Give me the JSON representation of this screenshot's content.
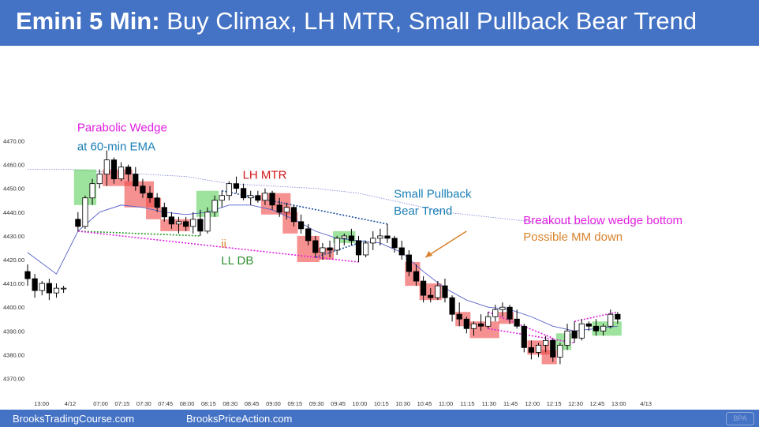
{
  "header": {
    "title_bold": "Emini 5 Min:",
    "title_rest": " Buy Climax, LH MTR, Small Pullback Bear Trend"
  },
  "footer": {
    "left_text": "BrooksTradingCourse.com",
    "right_text": "BrooksPriceAction.com",
    "logo_text": "BPA"
  },
  "colors": {
    "header_bg": "#4472c4",
    "bull_highlight": "#5ccf5c",
    "bear_highlight": "#f04848",
    "annotation_magenta": "#e020e0",
    "annotation_blue": "#1a7fb5",
    "annotation_red": "#d01818",
    "annotation_green": "#2f8f2f",
    "annotation_orange": "#d9822b",
    "ema_line": "#5560c8",
    "wedge_line_magenta": "#dd22dd",
    "db_line_green": "#2a9a2a"
  },
  "chart_data": {
    "type": "candlestick",
    "title": "Emini 5 Min: Buy Climax, LH MTR, Small Pullback Bear Trend",
    "ylim": [
      4365,
      4480
    ],
    "y_ticks": [
      "4470.00",
      "4460.00",
      "4450.00",
      "4440.00",
      "4430.00",
      "4420.00",
      "4410.00",
      "4400.00",
      "4390.00",
      "4380.00",
      "4370.00"
    ],
    "y_tick_values": [
      4470,
      4460,
      4450,
      4440,
      4430,
      4420,
      4410,
      4400,
      4390,
      4380,
      4370
    ],
    "x_ticks": [
      "13:00",
      "4/12",
      "07:00",
      "07:15",
      "07:30",
      "07:45",
      "08:00",
      "08:15",
      "08:30",
      "08:45",
      "09:00",
      "09:15",
      "09:30",
      "09:45",
      "10:00",
      "10:15",
      "10:30",
      "10:45",
      "11:00",
      "11:15",
      "11:30",
      "11:45",
      "12:00",
      "12:15",
      "12:30",
      "12:45",
      "13:00",
      "4/13"
    ],
    "x_tick_bars": [
      2,
      6,
      10,
      13,
      16,
      19,
      22,
      25,
      28,
      31,
      34,
      37,
      40,
      43,
      46,
      49,
      52,
      55,
      58,
      61,
      64,
      67,
      70,
      73,
      76,
      79,
      82,
      86
    ],
    "bars": [
      [
        4415,
        4418,
        4409,
        4412
      ],
      [
        4412,
        4414,
        4404,
        4407
      ],
      [
        4407,
        4411,
        4405,
        4410
      ],
      [
        4410,
        4412,
        4403,
        4406
      ],
      [
        4406,
        4410,
        4404,
        4408
      ],
      [
        4408,
        4409,
        4406,
        4408
      ],
      [
        4437,
        4440,
        4432,
        4434
      ],
      [
        4434,
        4447,
        4433,
        4446
      ],
      [
        4446,
        4454,
        4443,
        4452
      ],
      [
        4452,
        4458,
        4450,
        4456
      ],
      [
        4456,
        4466,
        4451,
        4462
      ],
      [
        4462,
        4463,
        4452,
        4454
      ],
      [
        4454,
        4461,
        4453,
        4459
      ],
      [
        4459,
        4460,
        4453,
        4456
      ],
      [
        4456,
        4459,
        4449,
        4451
      ],
      [
        4451,
        4454,
        4446,
        4448
      ],
      [
        4448,
        4451,
        4444,
        4446
      ],
      [
        4446,
        4448,
        4440,
        4442
      ],
      [
        4442,
        4444,
        4436,
        4438
      ],
      [
        4438,
        4440,
        4433,
        4435
      ],
      [
        4435,
        4438,
        4431,
        4436
      ],
      [
        4436,
        4438,
        4432,
        4434
      ],
      [
        4434,
        4440,
        4431,
        4437
      ],
      [
        4437,
        4441,
        4430,
        4432
      ],
      [
        4432,
        4442,
        4431,
        4440
      ],
      [
        4440,
        4447,
        4438,
        4445
      ],
      [
        4445,
        4449,
        4442,
        4447
      ],
      [
        4447,
        4453,
        4445,
        4452
      ],
      [
        4452,
        4455,
        4448,
        4450
      ],
      [
        4450,
        4452,
        4445,
        4446
      ],
      [
        4446,
        4449,
        4443,
        4447
      ],
      [
        4447,
        4449,
        4444,
        4445
      ],
      [
        4445,
        4450,
        4443,
        4448
      ],
      [
        4448,
        4449,
        4441,
        4443
      ],
      [
        4443,
        4446,
        4438,
        4440
      ],
      [
        4440,
        4444,
        4437,
        4442
      ],
      [
        4442,
        4443,
        4434,
        4436
      ],
      [
        4436,
        4439,
        4431,
        4433
      ],
      [
        4433,
        4435,
        4426,
        4428
      ],
      [
        4428,
        4430,
        4421,
        4423
      ],
      [
        4423,
        4427,
        4420,
        4425
      ],
      [
        4425,
        4428,
        4421,
        4424
      ],
      [
        4424,
        4430,
        4422,
        4429
      ],
      [
        4429,
        4431,
        4426,
        4430
      ],
      [
        4430,
        4433,
        4426,
        4428
      ],
      [
        4428,
        4430,
        4419,
        4422
      ],
      [
        4422,
        4428,
        4421,
        4427
      ],
      [
        4427,
        4432,
        4424,
        4429
      ],
      [
        4429,
        4433,
        4426,
        4430
      ],
      [
        4430,
        4435,
        4427,
        4429
      ],
      [
        4429,
        4430,
        4423,
        4425
      ],
      [
        4425,
        4428,
        4420,
        4422
      ],
      [
        4422,
        4424,
        4413,
        4415
      ],
      [
        4415,
        4418,
        4409,
        4411
      ],
      [
        4411,
        4413,
        4402,
        4405
      ],
      [
        4405,
        4408,
        4402,
        4404
      ],
      [
        4404,
        4411,
        4403,
        4409
      ],
      [
        4409,
        4412,
        4402,
        4404
      ],
      [
        4404,
        4405,
        4394,
        4397
      ],
      [
        4397,
        4402,
        4392,
        4395
      ],
      [
        4395,
        4396,
        4389,
        4391
      ],
      [
        4391,
        4394,
        4388,
        4393
      ],
      [
        4393,
        4397,
        4390,
        4392
      ],
      [
        4392,
        4398,
        4391,
        4396
      ],
      [
        4396,
        4401,
        4394,
        4399
      ],
      [
        4399,
        4402,
        4396,
        4400
      ],
      [
        4400,
        4401,
        4393,
        4395
      ],
      [
        4395,
        4399,
        4391,
        4392
      ],
      [
        4392,
        4393,
        4381,
        4383
      ],
      [
        4383,
        4386,
        4378,
        4381
      ],
      [
        4381,
        4385,
        4379,
        4384
      ],
      [
        4384,
        4388,
        4381,
        4386
      ],
      [
        4386,
        4387,
        4377,
        4379
      ],
      [
        4379,
        4385,
        4376,
        4384
      ],
      [
        4384,
        4393,
        4382,
        4390
      ],
      [
        4390,
        4394,
        4385,
        4387
      ],
      [
        4387,
        4395,
        4386,
        4393
      ],
      [
        4393,
        4394,
        4390,
        4392
      ],
      [
        4392,
        4395,
        4388,
        4390
      ],
      [
        4390,
        4393,
        4388,
        4392
      ],
      [
        4392,
        4399,
        4391,
        4397
      ],
      [
        4397,
        4398,
        4393,
        4395
      ]
    ],
    "bar_x_index": [
      0,
      1,
      2,
      3,
      4,
      5,
      7,
      8,
      9,
      10,
      11,
      12,
      13,
      14,
      15,
      16,
      17,
      18,
      19,
      20,
      21,
      22,
      23,
      24,
      25,
      26,
      27,
      28,
      29,
      30,
      31,
      32,
      33,
      34,
      35,
      36,
      37,
      38,
      39,
      40,
      41,
      42,
      43,
      44,
      45,
      46,
      47,
      48,
      49,
      50,
      51,
      52,
      53,
      54,
      55,
      56,
      57,
      58,
      59,
      60,
      61,
      62,
      63,
      64,
      65,
      66,
      67,
      68,
      69,
      70,
      71,
      72,
      73,
      74,
      75,
      76,
      77,
      78,
      79,
      80,
      81,
      82,
      83,
      84
    ],
    "ema": [
      [
        0,
        4423
      ],
      [
        4,
        4414
      ],
      [
        7,
        4432
      ],
      [
        10,
        4440
      ],
      [
        13,
        4443
      ],
      [
        16,
        4442
      ],
      [
        19,
        4440
      ],
      [
        22,
        4439
      ],
      [
        25,
        4440
      ],
      [
        28,
        4443
      ],
      [
        31,
        4443
      ],
      [
        34,
        4441
      ],
      [
        37,
        4437
      ],
      [
        40,
        4432
      ],
      [
        43,
        4429
      ],
      [
        46,
        4428
      ],
      [
        49,
        4427
      ],
      [
        52,
        4423
      ],
      [
        55,
        4415
      ],
      [
        58,
        4408
      ],
      [
        61,
        4403
      ],
      [
        64,
        4400
      ],
      [
        67,
        4399
      ],
      [
        70,
        4396
      ],
      [
        73,
        4392
      ],
      [
        76,
        4390
      ],
      [
        79,
        4391
      ],
      [
        82,
        4392
      ]
    ],
    "ema_60min": [
      [
        0,
        4458
      ],
      [
        6,
        4458
      ],
      [
        10,
        4457
      ],
      [
        16,
        4456
      ],
      [
        22,
        4455
      ],
      [
        28,
        4452
      ],
      [
        34,
        4451
      ],
      [
        40,
        4450
      ],
      [
        46,
        4448
      ],
      [
        52,
        4444
      ],
      [
        58,
        4440
      ],
      [
        64,
        4438
      ],
      [
        70,
        4436
      ],
      [
        76,
        4435
      ],
      [
        80,
        4435
      ]
    ],
    "bull_highlights": [
      [
        7,
        9,
        4443,
        4458
      ],
      [
        24,
        26,
        4438,
        4449
      ],
      [
        43,
        45,
        4427,
        4432
      ],
      [
        74,
        75,
        4382,
        4389
      ],
      [
        79,
        82,
        4388,
        4394
      ]
    ],
    "bear_highlights": [
      [
        11,
        14,
        4451,
        4458
      ],
      [
        14,
        17,
        4442,
        4453
      ],
      [
        17,
        18,
        4437,
        4446
      ],
      [
        19,
        22,
        4432,
        4437
      ],
      [
        33,
        36,
        4439,
        4448
      ],
      [
        36,
        37,
        4431,
        4440
      ],
      [
        38,
        40,
        4419,
        4430
      ],
      [
        41,
        42,
        4420,
        4425
      ],
      [
        53,
        54,
        4409,
        4419
      ],
      [
        55,
        57,
        4403,
        4410
      ],
      [
        60,
        61,
        4392,
        4398
      ],
      [
        62,
        65,
        4387,
        4394
      ],
      [
        66,
        67,
        4393,
        4398
      ],
      [
        70,
        72,
        4380,
        4386
      ],
      [
        72,
        73,
        4376,
        4382
      ]
    ],
    "annotations": [
      {
        "text": "Parabolic Wedge",
        "x": 7,
        "y": 4474,
        "color": "annotation_magenta"
      },
      {
        "text": "at 60-min EMA",
        "x": 7,
        "y": 4466,
        "color": "annotation_blue"
      },
      {
        "text": "LH MTR",
        "x": 30,
        "y": 4454,
        "color": "annotation_red"
      },
      {
        "text": "Small Pullback",
        "x": 51,
        "y": 4446,
        "color": "annotation_blue"
      },
      {
        "text": "Bear Trend",
        "x": 51,
        "y": 4439,
        "color": "annotation_blue"
      },
      {
        "text": "Breakout below wedge bottom",
        "x": 69,
        "y": 4435,
        "color": "annotation_magenta"
      },
      {
        "text": "Possible MM down",
        "x": 69,
        "y": 4428,
        "color": "annotation_orange"
      },
      {
        "text": "ii",
        "x": 27,
        "y": 4425,
        "color": "annotation_orange"
      },
      {
        "text": "LL DB",
        "x": 27,
        "y": 4418,
        "color": "annotation_green"
      }
    ]
  }
}
